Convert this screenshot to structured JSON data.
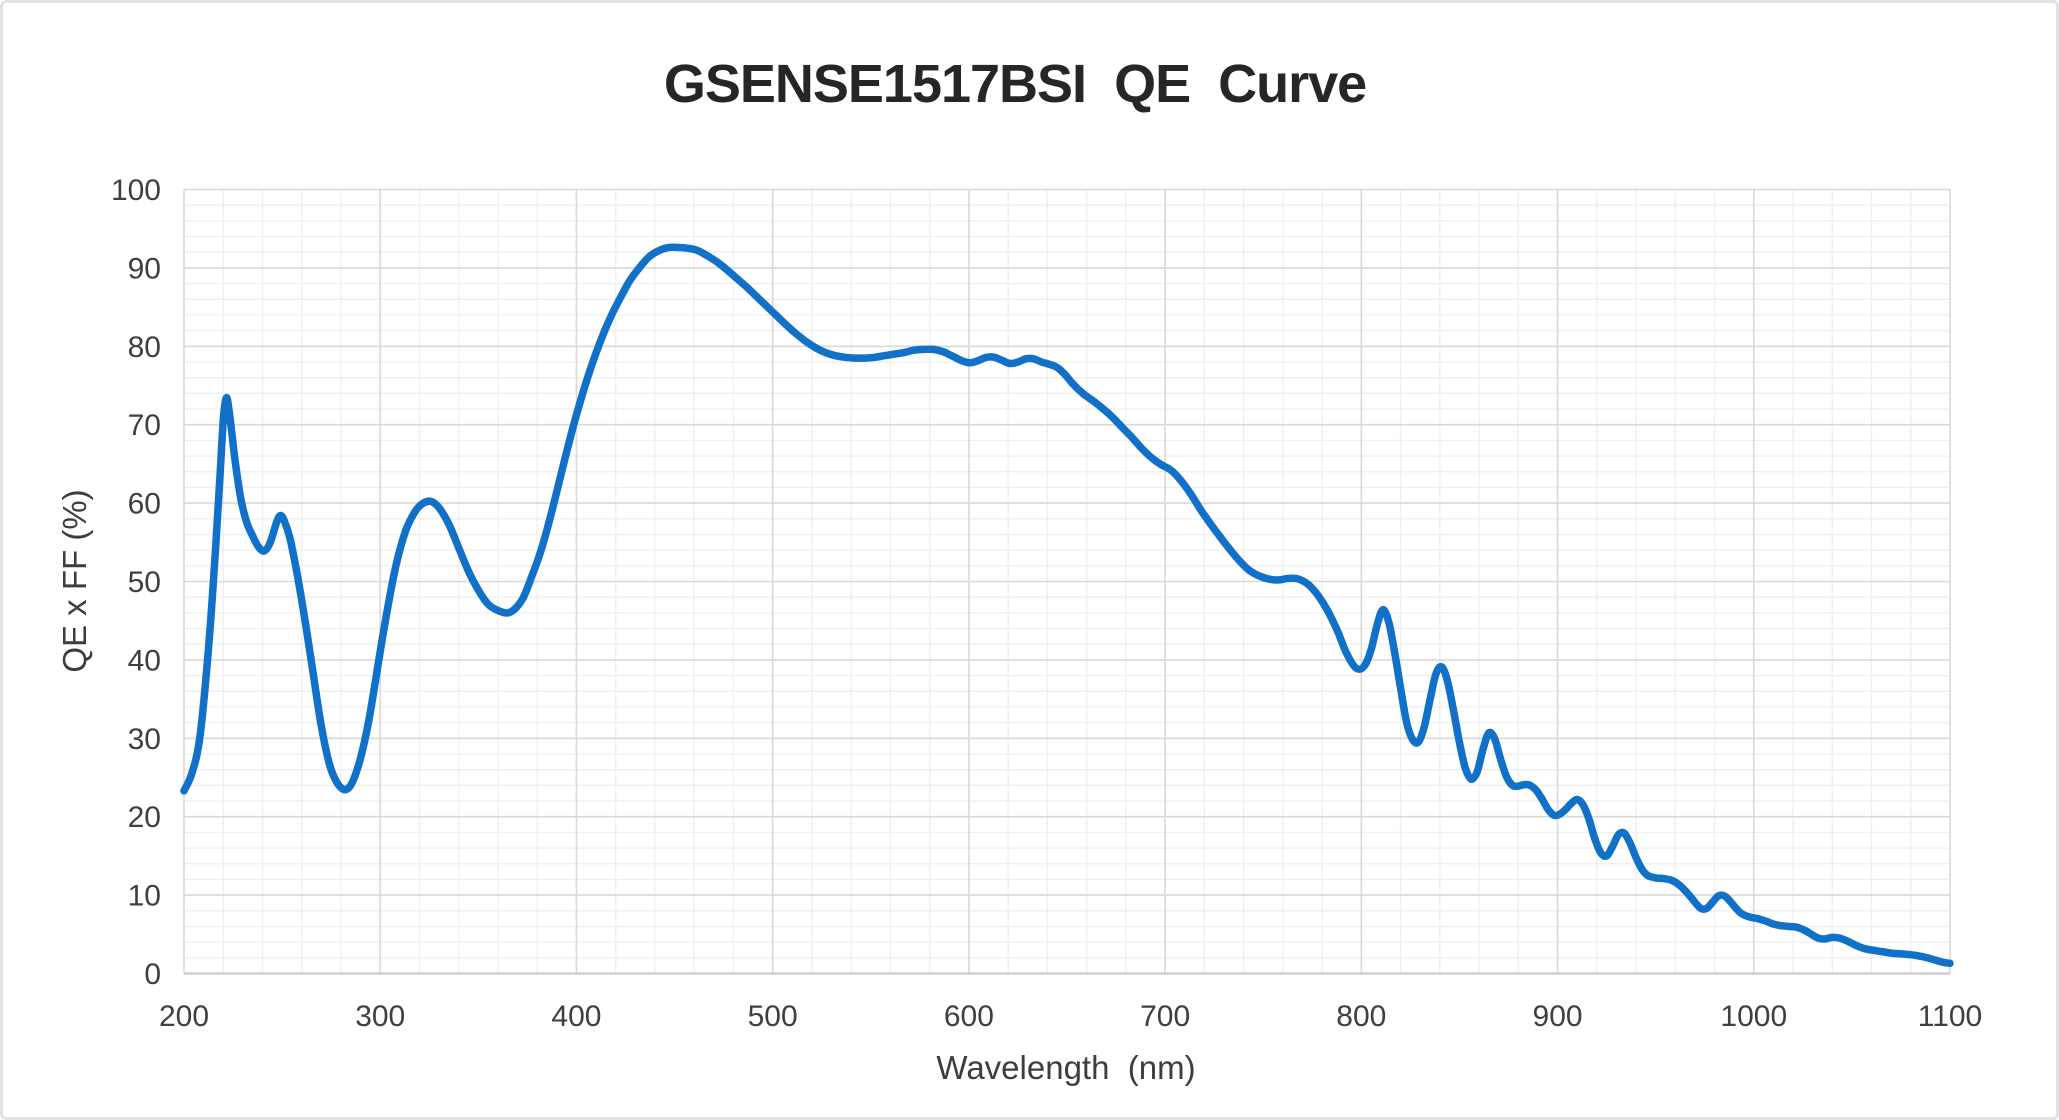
{
  "title": "GSENSE1517BSI  QE  Curve",
  "colors": {
    "line": "#1170C8",
    "major_grid": "#d9d9d9",
    "minor_grid": "#efefef",
    "axis_line": "#c6c6c6",
    "tick_text": "#3f3f3f",
    "title_text": "#262626"
  },
  "chart_data": {
    "type": "line",
    "title": "GSENSE1517BSI QE Curve",
    "xlabel": "Wavelength  (nm)",
    "ylabel": "QE x FF (%)",
    "x_range": [
      200,
      1100
    ],
    "y_range": [
      0,
      100
    ],
    "x_ticks": [
      200,
      300,
      400,
      500,
      600,
      700,
      800,
      900,
      1000,
      1100
    ],
    "y_ticks": [
      0,
      10,
      20,
      30,
      40,
      50,
      60,
      70,
      80,
      90,
      100
    ],
    "x_minor_step": 20,
    "y_minor_step": 2,
    "grid": true,
    "legend_position": "none",
    "series": [
      {
        "name": "QE x FF",
        "points": [
          [
            200,
            23.3
          ],
          [
            204,
            25.5
          ],
          [
            208,
            30.0
          ],
          [
            212,
            40.0
          ],
          [
            215,
            50.0
          ],
          [
            218,
            62.0
          ],
          [
            220,
            70.5
          ],
          [
            221.5,
            73.4
          ],
          [
            223,
            71.8
          ],
          [
            226,
            65.5
          ],
          [
            229,
            60.5
          ],
          [
            232,
            57.5
          ],
          [
            235,
            55.8
          ],
          [
            238,
            54.4
          ],
          [
            241,
            53.9
          ],
          [
            244,
            55.0
          ],
          [
            247,
            57.4
          ],
          [
            249,
            58.4
          ],
          [
            251,
            57.8
          ],
          [
            254,
            55.5
          ],
          [
            258,
            50.5
          ],
          [
            262,
            44.5
          ],
          [
            266,
            38.0
          ],
          [
            270,
            31.5
          ],
          [
            274,
            26.8
          ],
          [
            277,
            24.8
          ],
          [
            280,
            23.7
          ],
          [
            283,
            23.5
          ],
          [
            286,
            24.5
          ],
          [
            290,
            27.5
          ],
          [
            294,
            32.0
          ],
          [
            298,
            38.0
          ],
          [
            303,
            45.5
          ],
          [
            308,
            52.0
          ],
          [
            313,
            56.5
          ],
          [
            318,
            59.0
          ],
          [
            322,
            60.0
          ],
          [
            326,
            60.2
          ],
          [
            330,
            59.4
          ],
          [
            335,
            57.3
          ],
          [
            340,
            54.3
          ],
          [
            345,
            51.3
          ],
          [
            350,
            48.9
          ],
          [
            355,
            47.1
          ],
          [
            360,
            46.3
          ],
          [
            365,
            46.0
          ],
          [
            369,
            46.6
          ],
          [
            373,
            48.0
          ],
          [
            377,
            50.5
          ],
          [
            382,
            54.0
          ],
          [
            387,
            58.5
          ],
          [
            392,
            63.5
          ],
          [
            397,
            68.5
          ],
          [
            402,
            73.0
          ],
          [
            407,
            77.0
          ],
          [
            412,
            80.5
          ],
          [
            417,
            83.5
          ],
          [
            422,
            86.0
          ],
          [
            427,
            88.3
          ],
          [
            432,
            90.0
          ],
          [
            437,
            91.4
          ],
          [
            442,
            92.2
          ],
          [
            447,
            92.6
          ],
          [
            452,
            92.6
          ],
          [
            457,
            92.5
          ],
          [
            462,
            92.2
          ],
          [
            467,
            91.5
          ],
          [
            472,
            90.7
          ],
          [
            477,
            89.7
          ],
          [
            482,
            88.6
          ],
          [
            487,
            87.5
          ],
          [
            492,
            86.3
          ],
          [
            497,
            85.1
          ],
          [
            502,
            83.9
          ],
          [
            507,
            82.7
          ],
          [
            512,
            81.6
          ],
          [
            517,
            80.6
          ],
          [
            522,
            79.8
          ],
          [
            527,
            79.2
          ],
          [
            532,
            78.8
          ],
          [
            537,
            78.6
          ],
          [
            542,
            78.5
          ],
          [
            547,
            78.5
          ],
          [
            552,
            78.6
          ],
          [
            557,
            78.8
          ],
          [
            562,
            79.0
          ],
          [
            567,
            79.2
          ],
          [
            572,
            79.5
          ],
          [
            577,
            79.6
          ],
          [
            582,
            79.6
          ],
          [
            587,
            79.3
          ],
          [
            592,
            78.7
          ],
          [
            597,
            78.1
          ],
          [
            601,
            77.9
          ],
          [
            605,
            78.2
          ],
          [
            609,
            78.6
          ],
          [
            613,
            78.6
          ],
          [
            617,
            78.2
          ],
          [
            621,
            77.8
          ],
          [
            625,
            78.0
          ],
          [
            629,
            78.4
          ],
          [
            633,
            78.4
          ],
          [
            637,
            78.0
          ],
          [
            641,
            77.7
          ],
          [
            645,
            77.3
          ],
          [
            649,
            76.4
          ],
          [
            653,
            75.2
          ],
          [
            658,
            74.0
          ],
          [
            663,
            73.1
          ],
          [
            668,
            72.1
          ],
          [
            673,
            71.0
          ],
          [
            678,
            69.7
          ],
          [
            683,
            68.4
          ],
          [
            688,
            67.0
          ],
          [
            693,
            65.8
          ],
          [
            698,
            64.9
          ],
          [
            703,
            64.2
          ],
          [
            708,
            62.9
          ],
          [
            713,
            61.2
          ],
          [
            718,
            59.2
          ],
          [
            723,
            57.4
          ],
          [
            728,
            55.7
          ],
          [
            733,
            54.1
          ],
          [
            738,
            52.6
          ],
          [
            743,
            51.4
          ],
          [
            748,
            50.7
          ],
          [
            753,
            50.3
          ],
          [
            758,
            50.2
          ],
          [
            763,
            50.4
          ],
          [
            768,
            50.3
          ],
          [
            773,
            49.6
          ],
          [
            778,
            48.2
          ],
          [
            783,
            46.2
          ],
          [
            788,
            43.6
          ],
          [
            792,
            41.1
          ],
          [
            796,
            39.3
          ],
          [
            799,
            38.8
          ],
          [
            802,
            39.4
          ],
          [
            805,
            41.3
          ],
          [
            808,
            44.4
          ],
          [
            811,
            46.4
          ],
          [
            814,
            44.8
          ],
          [
            817,
            40.9
          ],
          [
            820,
            36.4
          ],
          [
            823,
            32.1
          ],
          [
            826,
            29.9
          ],
          [
            829,
            29.5
          ],
          [
            832,
            31.4
          ],
          [
            835,
            34.9
          ],
          [
            838,
            38.2
          ],
          [
            841,
            39.1
          ],
          [
            844,
            37.2
          ],
          [
            847,
            33.5
          ],
          [
            850,
            29.5
          ],
          [
            853,
            26.2
          ],
          [
            856,
            24.8
          ],
          [
            859,
            25.7
          ],
          [
            862,
            28.6
          ],
          [
            865,
            30.7
          ],
          [
            868,
            29.9
          ],
          [
            871,
            27.3
          ],
          [
            874,
            25.1
          ],
          [
            877,
            24.0
          ],
          [
            880,
            23.9
          ],
          [
            883,
            24.1
          ],
          [
            886,
            24.0
          ],
          [
            889,
            23.4
          ],
          [
            892,
            22.3
          ],
          [
            895,
            21.0
          ],
          [
            898,
            20.2
          ],
          [
            901,
            20.3
          ],
          [
            904,
            20.9
          ],
          [
            907,
            21.7
          ],
          [
            910,
            22.2
          ],
          [
            913,
            21.5
          ],
          [
            916,
            19.7
          ],
          [
            919,
            17.2
          ],
          [
            922,
            15.4
          ],
          [
            925,
            15.0
          ],
          [
            928,
            16.2
          ],
          [
            931,
            17.7
          ],
          [
            934,
            17.9
          ],
          [
            937,
            16.6
          ],
          [
            940,
            14.8
          ],
          [
            943,
            13.3
          ],
          [
            946,
            12.5
          ],
          [
            950,
            12.2
          ],
          [
            954,
            12.1
          ],
          [
            958,
            11.9
          ],
          [
            962,
            11.3
          ],
          [
            966,
            10.3
          ],
          [
            970,
            9.1
          ],
          [
            973,
            8.3
          ],
          [
            976,
            8.3
          ],
          [
            979,
            9.1
          ],
          [
            982,
            9.9
          ],
          [
            985,
            9.9
          ],
          [
            988,
            9.2
          ],
          [
            991,
            8.3
          ],
          [
            994,
            7.6
          ],
          [
            998,
            7.2
          ],
          [
            1002,
            7.0
          ],
          [
            1006,
            6.7
          ],
          [
            1010,
            6.3
          ],
          [
            1014,
            6.1
          ],
          [
            1018,
            6.0
          ],
          [
            1022,
            5.9
          ],
          [
            1026,
            5.5
          ],
          [
            1030,
            4.9
          ],
          [
            1033,
            4.5
          ],
          [
            1036,
            4.4
          ],
          [
            1040,
            4.6
          ],
          [
            1044,
            4.5
          ],
          [
            1048,
            4.1
          ],
          [
            1052,
            3.6
          ],
          [
            1056,
            3.2
          ],
          [
            1060,
            3.0
          ],
          [
            1065,
            2.8
          ],
          [
            1070,
            2.6
          ],
          [
            1075,
            2.5
          ],
          [
            1080,
            2.4
          ],
          [
            1085,
            2.2
          ],
          [
            1090,
            1.9
          ],
          [
            1094,
            1.6
          ],
          [
            1097,
            1.4
          ],
          [
            1100,
            1.3
          ]
        ]
      }
    ]
  }
}
